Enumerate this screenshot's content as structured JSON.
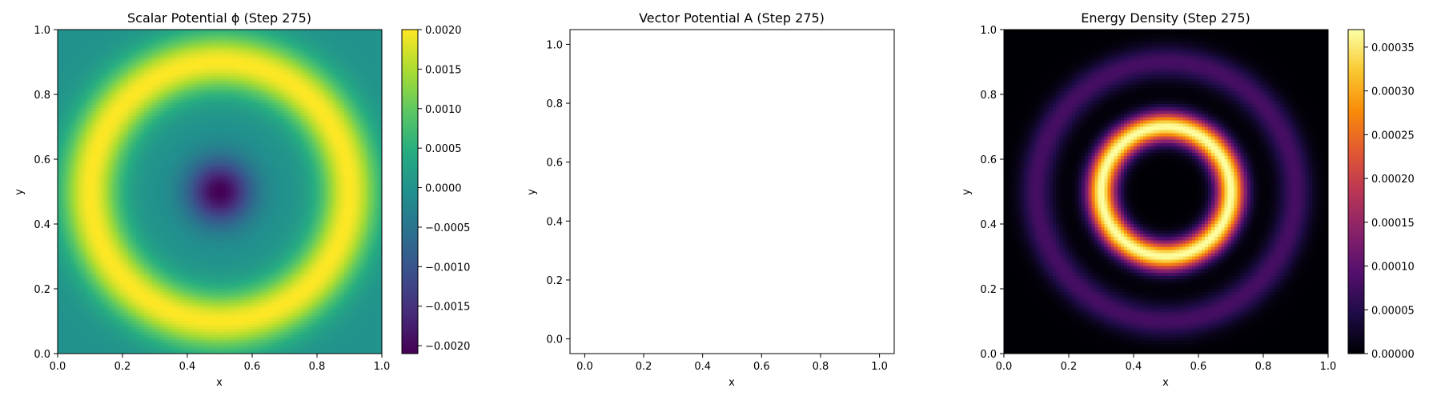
{
  "chart_data": [
    {
      "type": "heatmap",
      "title": "Scalar Potential ϕ (Step 275)",
      "xlabel": "x",
      "ylabel": "y",
      "xlim": [
        0.0,
        1.0
      ],
      "ylim": [
        0.0,
        1.0
      ],
      "xticks": [
        "0.0",
        "0.2",
        "0.4",
        "0.6",
        "0.8",
        "1.0"
      ],
      "yticks": [
        "0.0",
        "0.2",
        "0.4",
        "0.6",
        "0.8",
        "1.0"
      ],
      "colormap": "viridis",
      "colorbar": {
        "min": -0.0021,
        "max": 0.002,
        "ticks": [
          "0.0020",
          "0.0015",
          "0.0010",
          "0.0005",
          "0.0000",
          "−0.0005",
          "−0.0010",
          "−0.0015",
          "−0.0020"
        ]
      },
      "pattern": {
        "description": "radially symmetric field centered at (0.5, 0.5)",
        "center_value": -0.0021,
        "ring_peak_radius": 0.4,
        "ring_peak_value": 0.002,
        "edge_value": 0.0
      }
    },
    {
      "type": "quiver",
      "title": "Vector Potential A (Step 275)",
      "xlabel": "x",
      "ylabel": "y",
      "xlim": [
        -0.05,
        1.05
      ],
      "ylim": [
        -0.05,
        1.05
      ],
      "xticks": [
        "0.0",
        "0.2",
        "0.4",
        "0.6",
        "0.8",
        "1.0"
      ],
      "yticks": [
        "0.0",
        "0.2",
        "0.4",
        "0.6",
        "0.8",
        "1.0"
      ],
      "values": []
    },
    {
      "type": "heatmap",
      "title": "Energy Density (Step 275)",
      "xlabel": "x",
      "ylabel": "y",
      "xlim": [
        0.0,
        1.0
      ],
      "ylim": [
        0.0,
        1.0
      ],
      "xticks": [
        "0.0",
        "0.2",
        "0.4",
        "0.6",
        "0.8",
        "1.0"
      ],
      "yticks": [
        "0.0",
        "0.2",
        "0.4",
        "0.6",
        "0.8",
        "1.0"
      ],
      "colormap": "inferno",
      "colorbar": {
        "min": 0.0,
        "max": 0.00037,
        "ticks": [
          "0.00035",
          "0.00030",
          "0.00025",
          "0.00020",
          "0.00015",
          "0.00010",
          "0.00005",
          "0.00000"
        ]
      },
      "pattern": {
        "description": "bright ring with faint outer ring, centered at (0.5, 0.5)",
        "inner_ring_radius": 0.2,
        "inner_ring_value": 0.00037,
        "outer_ring_radius": 0.4,
        "outer_ring_value": 8e-05,
        "center_value": 0.0
      }
    }
  ]
}
